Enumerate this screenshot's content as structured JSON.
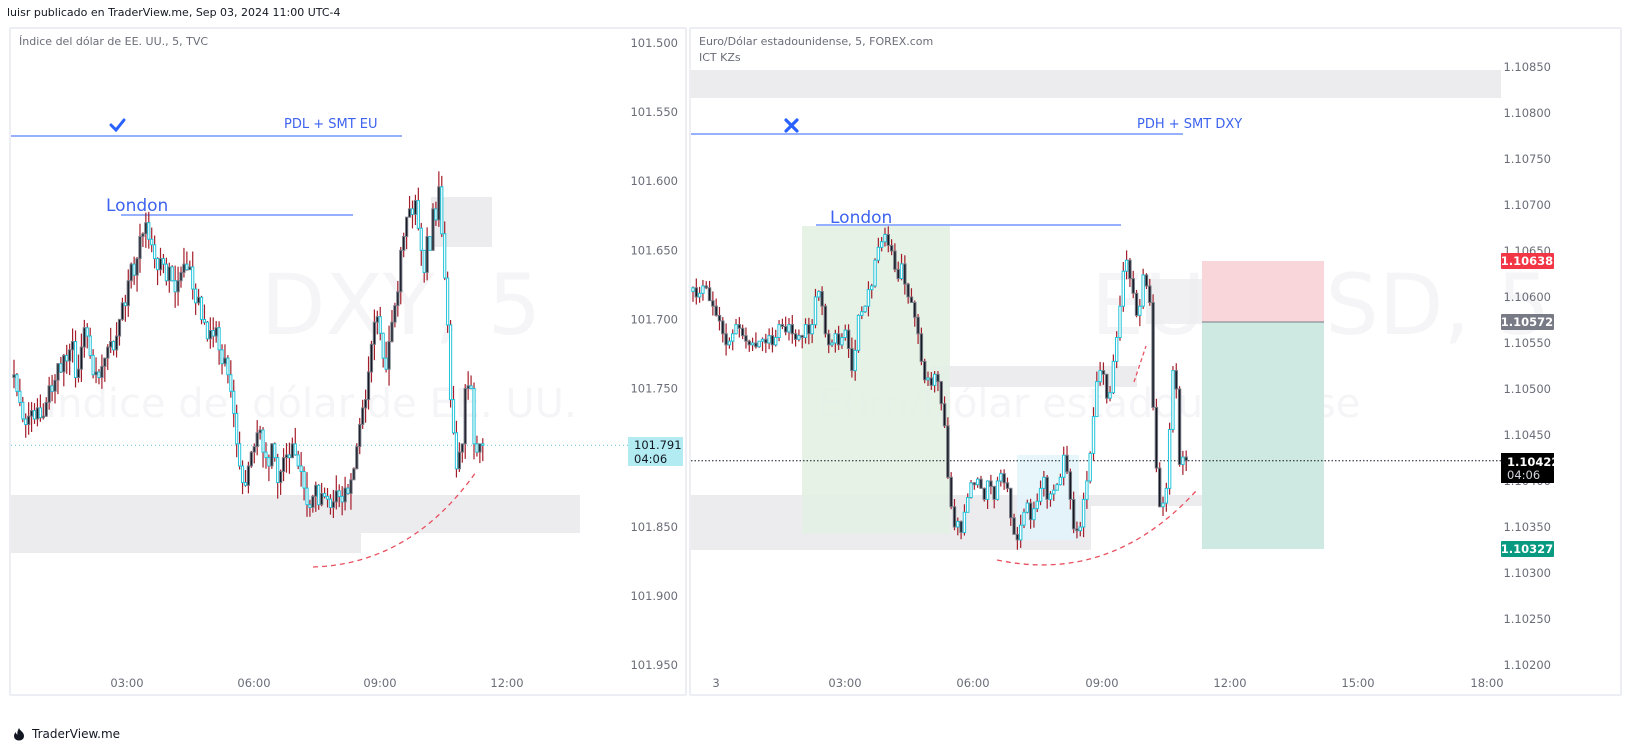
{
  "header": {
    "text": "luisr publicado en TraderView.me, Sep 03, 2024 11:00 UTC-4"
  },
  "footer": {
    "brand": "TraderView.me",
    "icon": "fire-logo-icon"
  },
  "colors": {
    "up_border": "#22c3d9",
    "up_fill": "#ffffff",
    "down_fill": "#131722",
    "down_border": "#787b86",
    "wick": "#a31d2a",
    "drawing_blue": "#2962ff",
    "label_blue": "#3d63f0",
    "zone_gray": "#ececef",
    "london_green": "#e3f1e3",
    "cyan_box": "#e2f5fa",
    "target_green": "#cde9e2",
    "stop_red": "#f9d6d9",
    "dashed_red": "#e8505f"
  },
  "chart_data": [
    {
      "type": "candlestick",
      "title": "Índice del dólar de EE. UU., 5, TVC",
      "symbol_watermark": "DXY, 5",
      "watermark_sub": "Índice del dólar de EE. UU.",
      "interval": "5",
      "yaxis_inverted": true,
      "ylim": [
        101.5,
        101.95
      ],
      "yticks": [
        "101.500",
        "101.550",
        "101.600",
        "101.650",
        "101.700",
        "101.750",
        "101.800",
        "101.850",
        "101.900",
        "101.950"
      ],
      "xticks": [
        "03:00",
        "06:00",
        "09:00",
        "12:00"
      ],
      "last_price": "101.791",
      "countdown": "04:06",
      "annotations": [
        {
          "text": "PDL + SMT EU",
          "type": "horizontal_line",
          "price": 101.568,
          "icon": "checkmark-icon"
        },
        {
          "text": "London",
          "type": "horizontal_line",
          "price": 101.625
        }
      ],
      "zones": [
        {
          "name": "gray-zone-top",
          "from_price": 101.612,
          "to_price": 101.648
        },
        {
          "name": "gray-zone-bottom",
          "from_price": 101.808,
          "to_price": 101.85
        }
      ],
      "closes": [
        101.74,
        101.752,
        101.76,
        101.772,
        101.776,
        101.77,
        101.766,
        101.772,
        101.764,
        101.771,
        101.77,
        101.76,
        101.748,
        101.752,
        101.744,
        101.732,
        101.738,
        101.726,
        101.73,
        101.722,
        101.716,
        101.742,
        101.736,
        101.72,
        101.706,
        101.712,
        101.726,
        101.74,
        101.738,
        101.742,
        101.734,
        101.728,
        101.72,
        101.716,
        101.722,
        101.712,
        101.7,
        101.688,
        101.69,
        101.672,
        101.66,
        101.668,
        101.656,
        101.64,
        101.638,
        101.63,
        101.642,
        101.646,
        101.656,
        101.664,
        101.656,
        101.66,
        101.672,
        101.662,
        101.672,
        101.68,
        101.672,
        101.666,
        101.66,
        101.664,
        101.662,
        101.678,
        101.688,
        101.684,
        101.7,
        101.702,
        101.714,
        101.708,
        101.712,
        101.706,
        101.722,
        101.732,
        101.728,
        101.74,
        101.752,
        101.768,
        101.79,
        101.806,
        101.818,
        101.82,
        101.806,
        101.796,
        101.792,
        101.782,
        101.78,
        101.796,
        101.8,
        101.806,
        101.79,
        101.8,
        101.818,
        101.81,
        101.8,
        101.798,
        101.8,
        101.79,
        101.798,
        101.806,
        101.81,
        101.822,
        101.834,
        101.836,
        101.828,
        101.82,
        101.834,
        101.826,
        101.828,
        101.83,
        101.836,
        101.832,
        101.824,
        101.828,
        101.832,
        101.822,
        101.826,
        101.816,
        101.808,
        101.792,
        101.776,
        101.764,
        101.758,
        101.738,
        101.718,
        101.702,
        101.698,
        101.71,
        101.728,
        101.736,
        101.716,
        101.702,
        101.69,
        101.68,
        101.65,
        101.64,
        101.626,
        101.62,
        101.624,
        101.614,
        101.634,
        101.65,
        101.666,
        101.64,
        101.65,
        101.62,
        101.628,
        101.604,
        101.638,
        101.67,
        101.704,
        101.758,
        101.782,
        101.808,
        101.796,
        101.79,
        101.75,
        101.748,
        101.75,
        101.79,
        101.796,
        101.79,
        101.791
      ]
    },
    {
      "type": "candlestick",
      "title": "Euro/Dólar estadounidense, 5, FOREX.com",
      "indicator": "ICT KZs",
      "symbol_watermark": "EURUSD, 5",
      "watermark_sub": "Euro/Dólar estadounidense",
      "interval": "5",
      "ylim": [
        1.102,
        1.1086
      ],
      "yticks": [
        "1.10850",
        "1.10800",
        "1.10750",
        "1.10700",
        "1.10650",
        "1.10600",
        "1.10550",
        "1.10500",
        "1.10450",
        "1.10400",
        "1.10350",
        "1.10300",
        "1.10250",
        "1.10200"
      ],
      "xticks": [
        "3",
        "03:00",
        "06:00",
        "09:00",
        "12:00",
        "15:00",
        "18:00"
      ],
      "last_price": "1.10422",
      "countdown": "04:06",
      "price_labels": {
        "stop": "1.10638",
        "entry": "1.10572",
        "target": "1.10327"
      },
      "annotations": [
        {
          "text": "PDH + SMT DXY",
          "type": "horizontal_line",
          "price": 1.10772,
          "icon": "cross-icon"
        },
        {
          "text": "London",
          "type": "horizontal_line",
          "price": 1.10677
        }
      ],
      "zones": [
        {
          "name": "gray-zone-top",
          "from_price": 1.10827,
          "to_price": 1.10857
        },
        {
          "name": "gray-zone-mid",
          "from_price": 1.1049,
          "to_price": 1.10512
        },
        {
          "name": "gray-zone-bottom",
          "from_price": 1.10315,
          "to_price": 1.10375
        },
        {
          "name": "london-session",
          "from_price": 1.10338,
          "to_price": 1.10677
        },
        {
          "name": "ny-box",
          "from_price": 1.10327,
          "to_price": 1.1043
        }
      ],
      "short_position": {
        "stop": 1.10638,
        "entry": 1.10572,
        "target": 1.10327
      },
      "closes": [
        1.1061,
        1.106,
        1.10604,
        1.10612,
        1.1061,
        1.10596,
        1.1059,
        1.1058,
        1.10574,
        1.1056,
        1.10548,
        1.10552,
        1.1056,
        1.1057,
        1.10566,
        1.10558,
        1.10552,
        1.10548,
        1.1055,
        1.10546,
        1.10552,
        1.10554,
        1.1055,
        1.10558,
        1.10548,
        1.10556,
        1.1057,
        1.10568,
        1.10562,
        1.1057,
        1.1056,
        1.10554,
        1.10558,
        1.10556,
        1.1057,
        1.1056,
        1.1057,
        1.106,
        1.10606,
        1.1059,
        1.1056,
        1.10548,
        1.1055,
        1.1056,
        1.10548,
        1.10556,
        1.10564,
        1.10544,
        1.1052,
        1.10542,
        1.1058,
        1.10584,
        1.1059,
        1.10608,
        1.10612,
        1.1064,
        1.10654,
        1.1066,
        1.10668,
        1.10656,
        1.1065,
        1.1063,
        1.1062,
        1.10636,
        1.10614,
        1.106,
        1.10594,
        1.10578,
        1.1056,
        1.1053,
        1.1051,
        1.10512,
        1.10504,
        1.10516,
        1.10508,
        1.10484,
        1.1046,
        1.10404,
        1.10372,
        1.1035,
        1.10356,
        1.10344,
        1.10366,
        1.10382,
        1.10398,
        1.10396,
        1.10402,
        1.10392,
        1.1038,
        1.104,
        1.10394,
        1.1038,
        1.104,
        1.10408,
        1.10398,
        1.10392,
        1.1036,
        1.10342,
        1.10336,
        1.10352,
        1.10366,
        1.10376,
        1.10358,
        1.1037,
        1.10378,
        1.10392,
        1.10404,
        1.1038,
        1.10386,
        1.1039,
        1.10396,
        1.10404,
        1.10428,
        1.1041,
        1.1038,
        1.10348,
        1.10346,
        1.1035,
        1.1038,
        1.104,
        1.1043,
        1.1047,
        1.10508,
        1.1052,
        1.10516,
        1.1049,
        1.10496,
        1.1053,
        1.10556,
        1.1059,
        1.10628,
        1.1064,
        1.1062,
        1.10604,
        1.1058,
        1.1059,
        1.10624,
        1.10612,
        1.10594,
        1.1048,
        1.10414,
        1.10372,
        1.10376,
        1.10392,
        1.10456,
        1.1052,
        1.105,
        1.10418,
        1.10426,
        1.10422
      ]
    }
  ]
}
